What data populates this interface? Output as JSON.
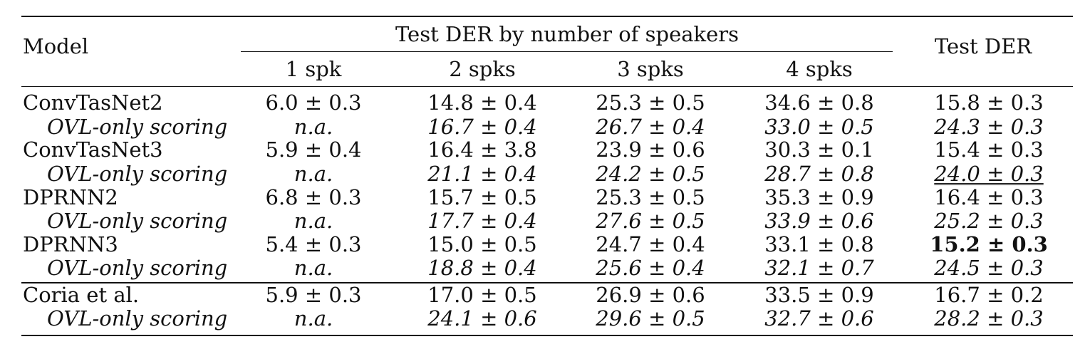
{
  "header": {
    "model": "Model",
    "group": "Test DER by number of speakers",
    "subcols": [
      "1 spk",
      "2 spks",
      "3 spks",
      "4 spks"
    ],
    "total": "Test DER"
  },
  "rows": [
    {
      "model": "ConvTasNet2",
      "vals": [
        "6.0 ± 0.3",
        "14.8 ± 0.4",
        "25.3 ± 0.5",
        "34.6 ± 0.8",
        "15.8 ± 0.3"
      ]
    },
    {
      "model": "OVL-only scoring",
      "sub": true,
      "vals": [
        "n.a.",
        "16.7 ± 0.4",
        "26.7 ± 0.4",
        "33.0 ± 0.5",
        "24.3 ± 0.3"
      ]
    },
    {
      "model": "ConvTasNet3",
      "vals": [
        "5.9 ± 0.4",
        "16.4 ± 3.8",
        "23.9 ± 0.6",
        "30.3 ± 0.1",
        "15.4 ± 0.3"
      ]
    },
    {
      "model": "OVL-only scoring",
      "sub": true,
      "vals": [
        "n.a.",
        "21.1 ± 0.4",
        "24.2 ± 0.5",
        "28.7 ± 0.8",
        "24.0 ± 0.3"
      ]
    },
    {
      "model": "DPRNN2",
      "vals": [
        "6.8 ± 0.3",
        "15.7 ± 0.5",
        "25.3 ± 0.5",
        "35.3 ± 0.9",
        "16.4 ± 0.3"
      ]
    },
    {
      "model": "OVL-only scoring",
      "sub": true,
      "vals": [
        "n.a.",
        "17.7 ± 0.4",
        "27.6 ± 0.5",
        "33.9 ± 0.6",
        "25.2 ± 0.3"
      ]
    },
    {
      "model": "DPRNN3",
      "vals": [
        "5.4 ± 0.3",
        "15.0 ± 0.5",
        "24.7 ± 0.4",
        "33.1 ± 0.8",
        "15.2 ± 0.3"
      ]
    },
    {
      "model": "OVL-only scoring",
      "sub": true,
      "vals": [
        "n.a.",
        "18.8 ± 0.4",
        "25.6 ± 0.4",
        "32.1 ± 0.7",
        "24.5 ± 0.3"
      ]
    },
    {
      "model": "Coria et al.",
      "vals": [
        "5.9 ± 0.3",
        "17.0 ± 0.5",
        "26.9 ± 0.6",
        "33.5 ± 0.9",
        "16.7 ± 0.2"
      ]
    },
    {
      "model": "OVL-only scoring",
      "sub": true,
      "vals": [
        "n.a.",
        "24.1 ± 0.6",
        "29.6 ± 0.5",
        "32.7 ± 0.6",
        "28.2 ± 0.3"
      ]
    }
  ]
}
